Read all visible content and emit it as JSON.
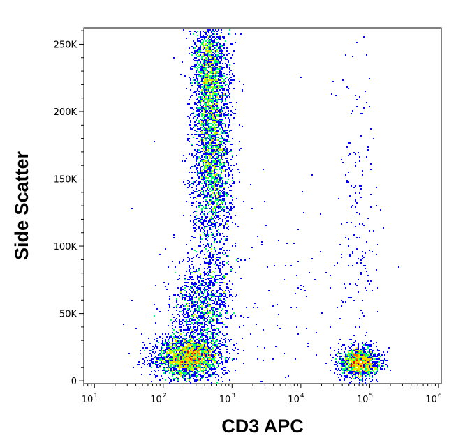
{
  "chart_data": {
    "type": "scatter",
    "subtype": "flow-cytometry-density-dot-plot",
    "title": "",
    "xlabel": "CD3 APC",
    "ylabel": "Side Scatter",
    "x_scale": "log",
    "xlim": [
      7,
      1100000
    ],
    "ylim": [
      -2000,
      262144
    ],
    "x_ticks": [
      {
        "value": 10,
        "base": "10",
        "exp": "1"
      },
      {
        "value": 100,
        "base": "10",
        "exp": "2"
      },
      {
        "value": 1000,
        "base": "10",
        "exp": "3"
      },
      {
        "value": 10000,
        "base": "10",
        "exp": "4"
      },
      {
        "value": 100000,
        "base": "10",
        "exp": "5"
      },
      {
        "value": 1000000,
        "base": "10",
        "exp": "6"
      }
    ],
    "y_ticks": [
      {
        "value": 0,
        "label": "0"
      },
      {
        "value": 50000,
        "label": "50K"
      },
      {
        "value": 100000,
        "label": "100K"
      },
      {
        "value": 150000,
        "label": "150K"
      },
      {
        "value": 200000,
        "label": "200K"
      },
      {
        "value": 250000,
        "label": "250K"
      }
    ],
    "grid": false,
    "legend": "none",
    "colormap": [
      "#0000ff",
      "#00b4ff",
      "#00ff6e",
      "#c8ff00",
      "#ffd200",
      "#ff6400",
      "#e60000"
    ],
    "populations": [
      {
        "x_center": 500,
        "x_spread": 0.14,
        "y_center": 175000,
        "y_spread": 45000,
        "weight": 0.34
      },
      {
        "x_center": 450,
        "x_spread": 0.11,
        "y_center": 235000,
        "y_spread": 18000,
        "weight": 0.1
      },
      {
        "x_center": 350,
        "x_spread": 0.22,
        "y_center": 55000,
        "y_spread": 18000,
        "weight": 0.12
      },
      {
        "x_center": 220,
        "x_spread": 0.24,
        "y_center": 18000,
        "y_spread": 8000,
        "weight": 0.26
      },
      {
        "x_center": 70000,
        "x_spread": 0.15,
        "y_center": 14000,
        "y_spread": 5500,
        "weight": 0.14
      },
      {
        "x_center": 65000,
        "x_spread": 0.15,
        "y_center": 120000,
        "y_spread": 70000,
        "weight": 0.02
      },
      {
        "x_center": 2000,
        "x_spread": 0.8,
        "y_center": 60000,
        "y_spread": 50000,
        "weight": 0.02
      }
    ]
  }
}
